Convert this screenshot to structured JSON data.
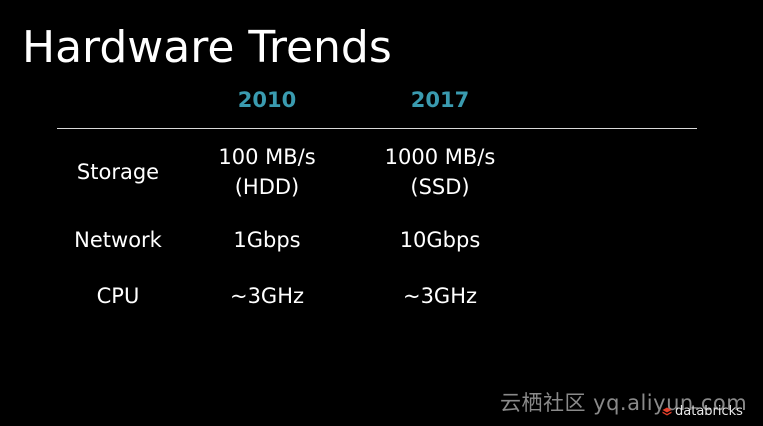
{
  "slide": {
    "title": "Hardware Trends"
  },
  "columns": [
    "2010",
    "2017"
  ],
  "accent_color": "#3a9bb0",
  "rows": [
    {
      "label": "Storage",
      "values_2010": [
        "100 MB/s",
        "(HDD)"
      ],
      "values_2017": [
        "1000 MB/s",
        "(SSD)"
      ]
    },
    {
      "label": "Network",
      "values_2010": [
        "1Gbps"
      ],
      "values_2017": [
        "10Gbps"
      ]
    },
    {
      "label": "CPU",
      "values_2010": [
        "~3GHz"
      ],
      "values_2017": [
        "~3GHz"
      ]
    }
  ],
  "watermark": {
    "text": "云栖社区 yq.aliyun.com"
  },
  "brand": {
    "icon": "databricks-logo-icon",
    "text": "databricks",
    "color": "#e8412c"
  }
}
